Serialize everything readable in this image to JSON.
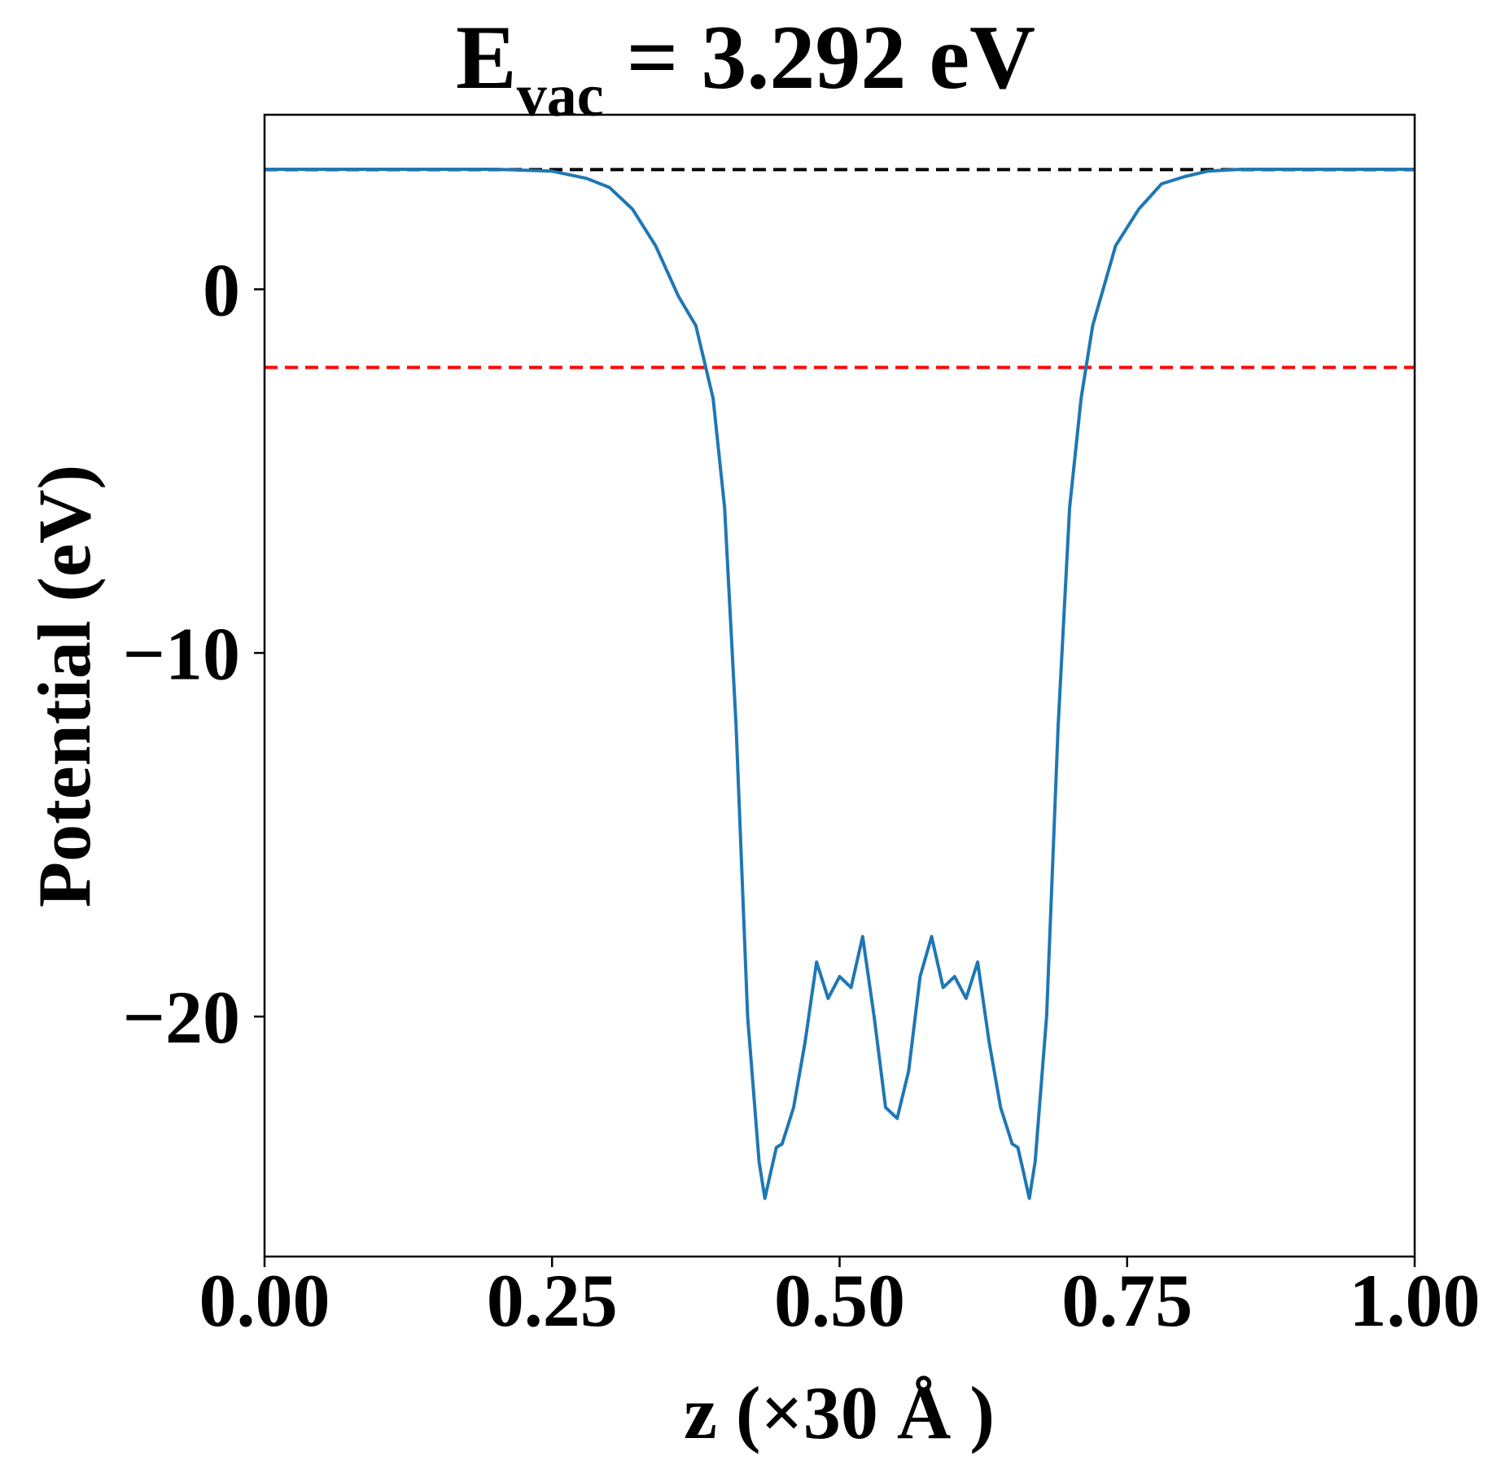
{
  "chart_data": {
    "type": "line",
    "title": {
      "main": "E",
      "subscript": "vac",
      "rest": " = 3.292 eV"
    },
    "xlabel": "z (×30 Å )",
    "ylabel": "Potential (eV)",
    "xlim": [
      0.0,
      1.0
    ],
    "ylim": [
      -26.6,
      4.8
    ],
    "x_ticks": [
      0.0,
      0.25,
      0.5,
      0.75,
      1.0
    ],
    "x_tick_labels": [
      "0.00",
      "0.25",
      "0.50",
      "0.75",
      "1.00"
    ],
    "y_ticks": [
      0,
      -10,
      -20
    ],
    "y_tick_labels": [
      "0",
      "−10",
      "−20"
    ],
    "grid": false,
    "legend": "none",
    "reference_lines": [
      {
        "y": 3.292,
        "color": "#000000",
        "style": "dashed"
      },
      {
        "y": -2.15,
        "color": "#ff0000",
        "style": "dashed"
      }
    ],
    "series": [
      {
        "color": "#1f77b4",
        "x": [
          0.0,
          0.05,
          0.1,
          0.15,
          0.2,
          0.25,
          0.28,
          0.3,
          0.32,
          0.34,
          0.36,
          0.375,
          0.39,
          0.4,
          0.41,
          0.42,
          0.43,
          0.435,
          0.44,
          0.445,
          0.45,
          0.46,
          0.47,
          0.48,
          0.49,
          0.5,
          0.51,
          0.52,
          0.53,
          0.54,
          0.55,
          0.56,
          0.57,
          0.58,
          0.59,
          0.6,
          0.61,
          0.62,
          0.63,
          0.64,
          0.65,
          0.655,
          0.66,
          0.665,
          0.67,
          0.68,
          0.69,
          0.7,
          0.71,
          0.72,
          0.74,
          0.76,
          0.78,
          0.8,
          0.82,
          0.85,
          0.9,
          0.95,
          1.0
        ],
        "y": [
          3.3,
          3.3,
          3.3,
          3.3,
          3.3,
          3.25,
          3.05,
          2.8,
          2.2,
          1.2,
          -0.2,
          -1.0,
          -3.0,
          -6.0,
          -12.0,
          -20.0,
          -24.0,
          -25.0,
          -24.3,
          -23.6,
          -23.5,
          -22.5,
          -20.7,
          -18.5,
          -19.5,
          -18.9,
          -19.2,
          -17.8,
          -20.0,
          -22.5,
          -22.8,
          -21.5,
          -18.9,
          -17.8,
          -19.2,
          -18.9,
          -19.5,
          -18.5,
          -20.7,
          -22.5,
          -23.5,
          -23.6,
          -24.3,
          -25.0,
          -24.0,
          -20.0,
          -12.0,
          -6.0,
          -3.0,
          -1.0,
          1.2,
          2.2,
          2.9,
          3.1,
          3.25,
          3.3,
          3.3,
          3.3,
          3.3
        ]
      }
    ]
  }
}
